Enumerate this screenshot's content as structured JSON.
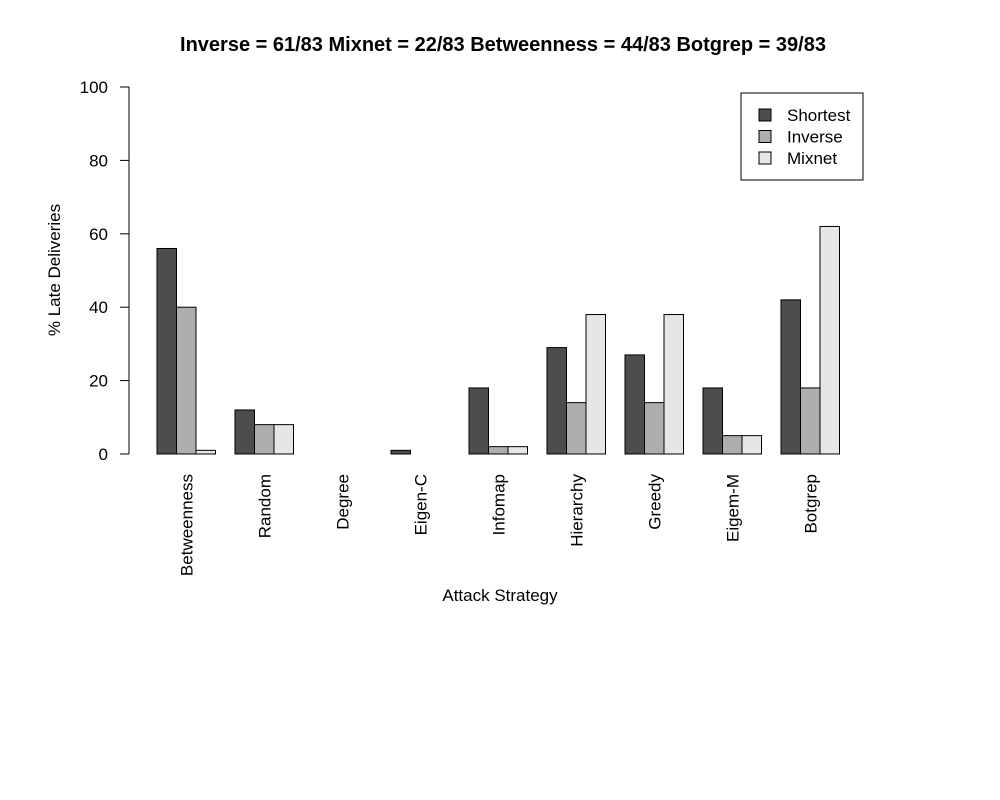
{
  "chart_data": {
    "type": "bar",
    "title": "Inverse = 61/83 Mixnet = 22/83 Betweenness = 44/83 Botgrep = 39/83",
    "xlabel": "Attack Strategy",
    "ylabel": "% Late Deliveries",
    "ylim": [
      0,
      100
    ],
    "yticks": [
      "0",
      "20",
      "40",
      "60",
      "80",
      "100"
    ],
    "grid": false,
    "legend_position": "top-right",
    "categories": [
      "Betweenness",
      "Random",
      "Degree",
      "Eigen-C",
      "Infomap",
      "Hierarchy",
      "Greedy",
      "Eigem-M",
      "Botgrep"
    ],
    "series": [
      {
        "name": "Shortest",
        "color": "#4d4d4d",
        "values": [
          56,
          12,
          0,
          1,
          18,
          29,
          27,
          18,
          42
        ]
      },
      {
        "name": "Inverse",
        "color": "#aeaeae",
        "values": [
          40,
          8,
          0,
          0,
          2,
          14,
          14,
          5,
          18
        ]
      },
      {
        "name": "Mixnet",
        "color": "#e6e6e6",
        "values": [
          1,
          8,
          0,
          0,
          2,
          38,
          38,
          5,
          62
        ]
      }
    ]
  }
}
